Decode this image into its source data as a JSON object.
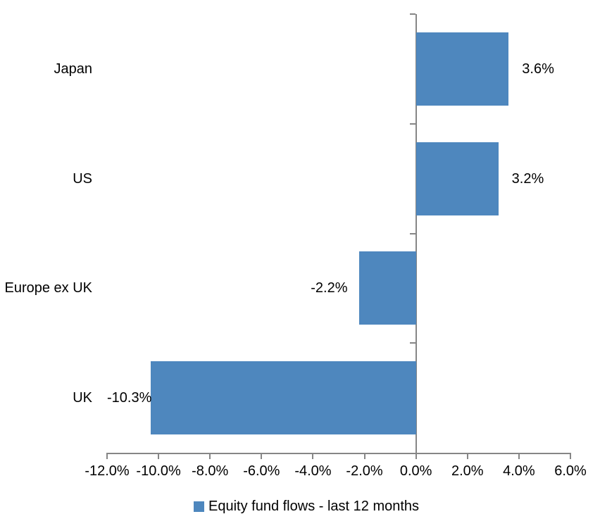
{
  "chart_data": {
    "type": "bar",
    "orientation": "horizontal",
    "title": "",
    "categories": [
      "Japan",
      "US",
      "Europe ex UK",
      "UK"
    ],
    "series": [
      {
        "name": "Equity fund flows - last 12 months",
        "values": [
          3.6,
          3.2,
          -2.2,
          -10.3
        ],
        "data_labels": [
          "3.6%",
          "3.2%",
          "-2.2%",
          "-10.3%"
        ]
      }
    ],
    "xlim": [
      -12,
      6
    ],
    "x_ticks": [
      -12,
      -10,
      -8,
      -6,
      -4,
      -2,
      0,
      2,
      4,
      6
    ],
    "x_tick_labels": [
      "-12.0%",
      "-10.0%",
      "-8.0%",
      "-6.0%",
      "-4.0%",
      "-2.0%",
      "0.0%",
      "2.0%",
      "4.0%",
      "6.0%"
    ],
    "grid": false,
    "legend": {
      "position": "bottom",
      "label": "Equity fund flows - last 12 months",
      "marker_color": "#4E87BE"
    },
    "colors": {
      "bar": "#4E87BE",
      "axis": "#868686",
      "text": "#000000",
      "background": "#FFFFFF"
    }
  }
}
